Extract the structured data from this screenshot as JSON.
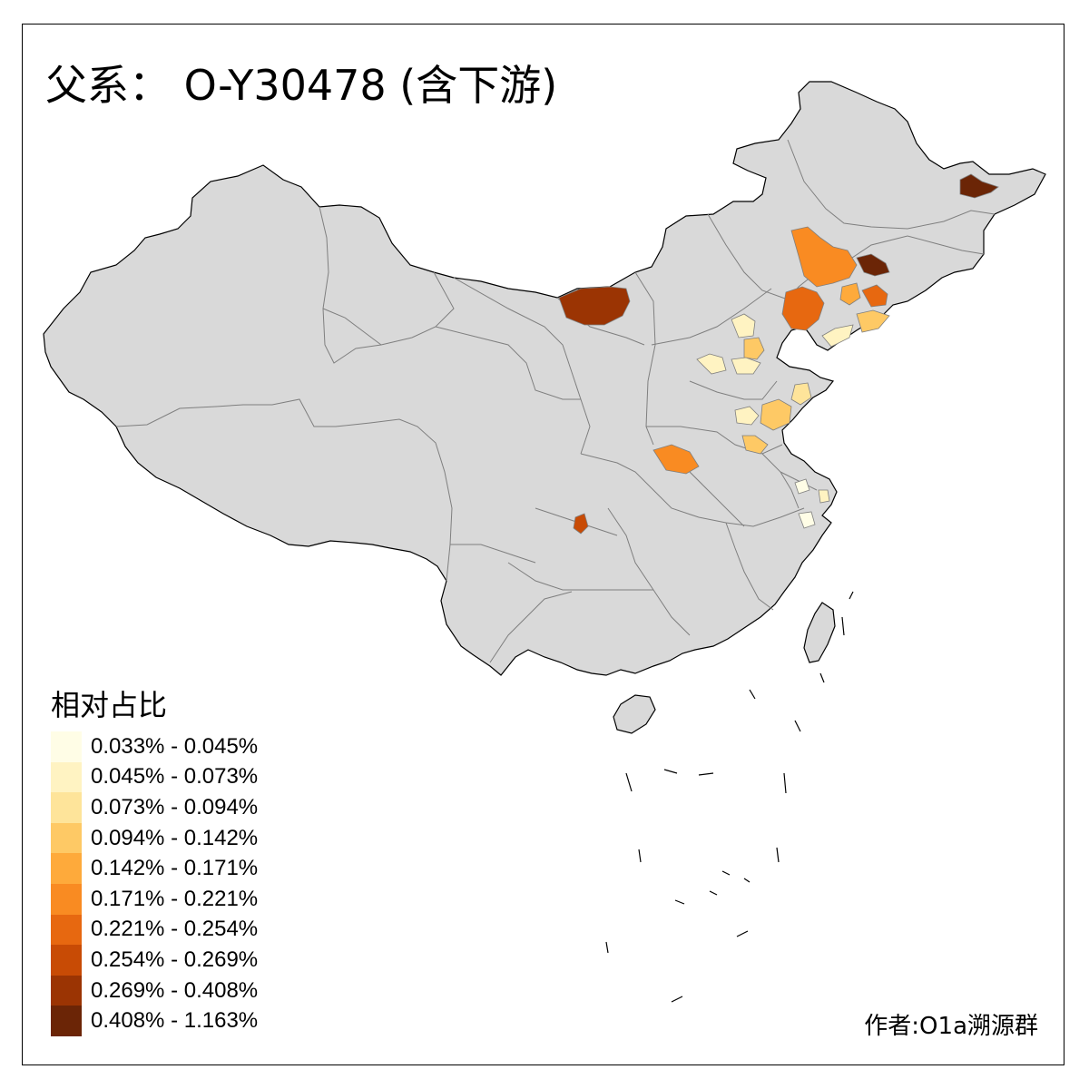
{
  "title": "父系： O-Y30478 (含下游)",
  "legend": {
    "title": "相对占比",
    "items": [
      {
        "label": "0.033% - 0.045%",
        "color": "#fffde6"
      },
      {
        "label": "0.045% - 0.073%",
        "color": "#fff3c2"
      },
      {
        "label": "0.073% - 0.094%",
        "color": "#fee49a"
      },
      {
        "label": "0.094% - 0.142%",
        "color": "#fec965"
      },
      {
        "label": "0.142% - 0.171%",
        "color": "#feaa3b"
      },
      {
        "label": "0.171% - 0.221%",
        "color": "#f98b22"
      },
      {
        "label": "0.221% - 0.254%",
        "color": "#e76810"
      },
      {
        "label": "0.254% - 0.269%",
        "color": "#c84b05"
      },
      {
        "label": "0.269% - 0.408%",
        "color": "#9b3403"
      },
      {
        "label": "0.408% - 1.163%",
        "color": "#6b2506"
      }
    ]
  },
  "credit": "作者:O1a溯源群",
  "colors": {
    "land": "#d9d9d9",
    "border": "#7f7f7f",
    "outline": "#000000",
    "background": "#ffffff"
  }
}
